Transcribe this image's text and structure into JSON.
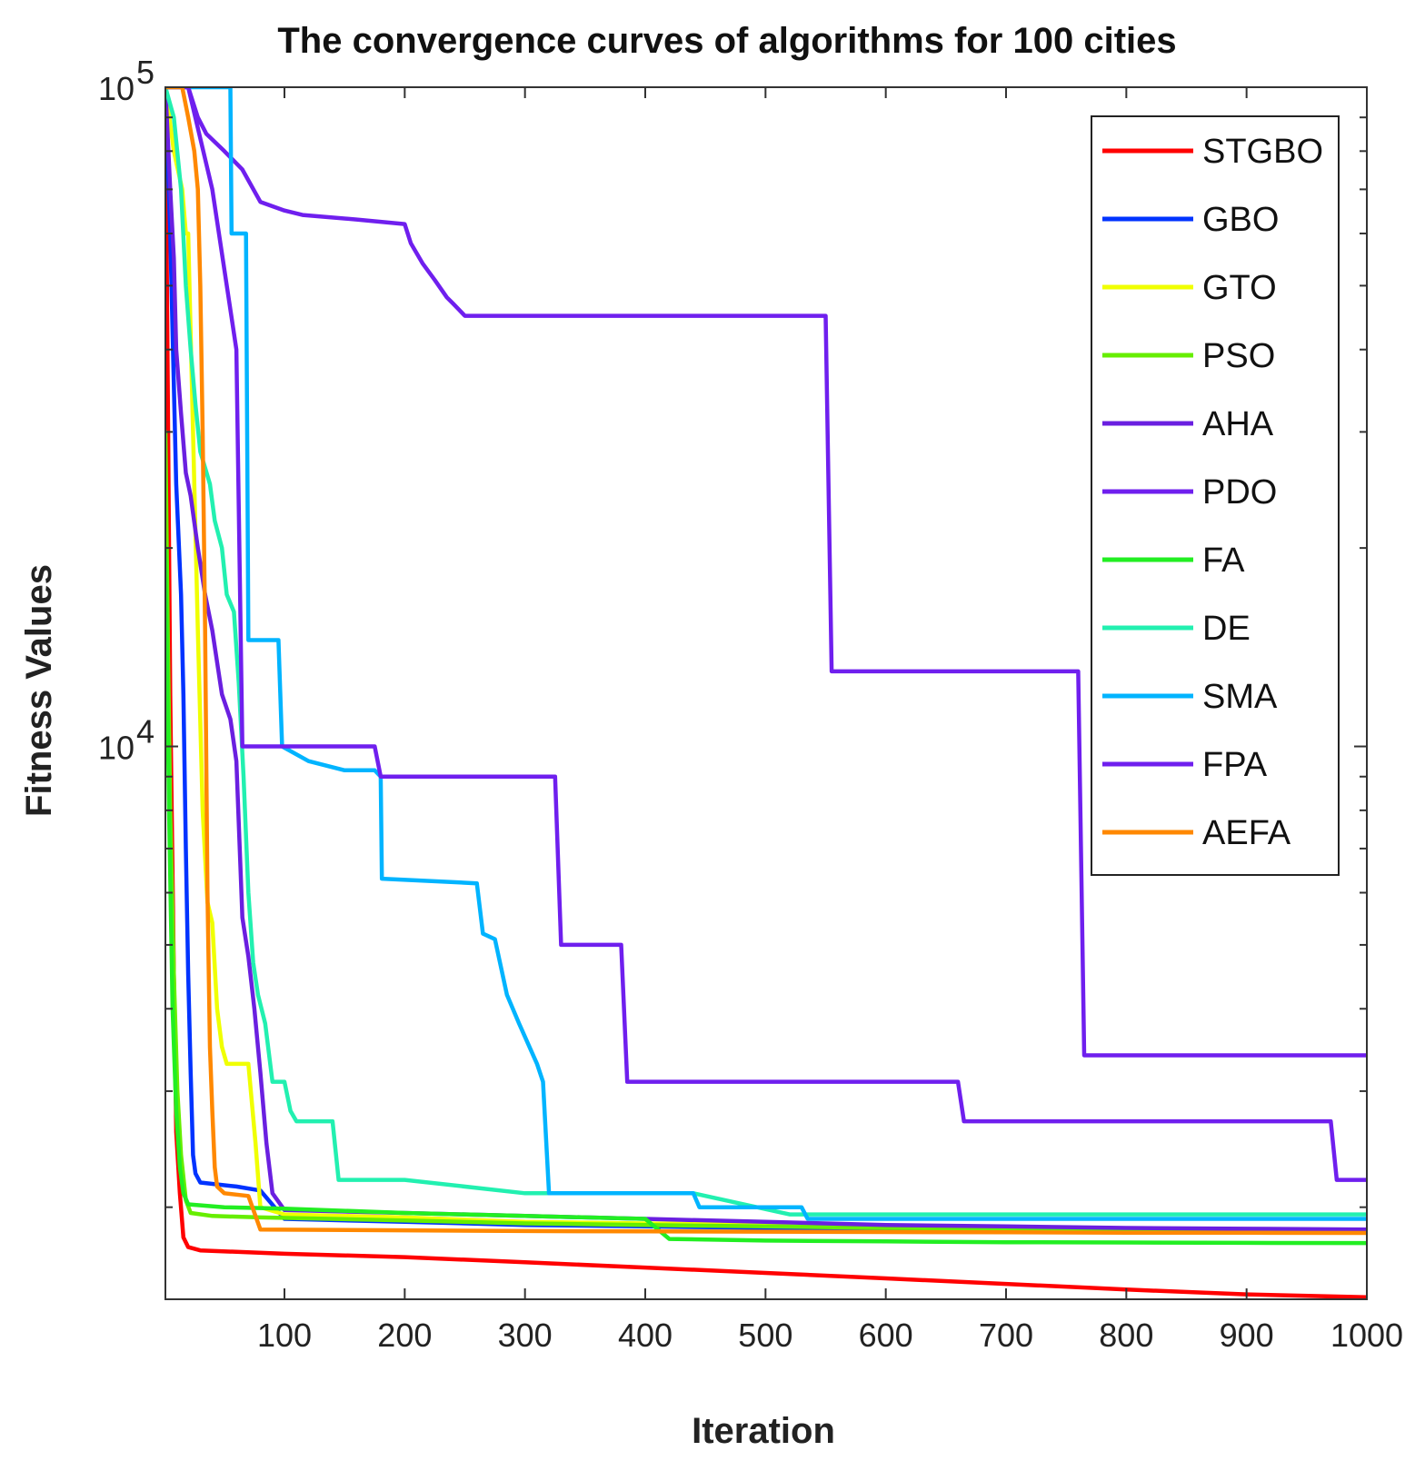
{
  "chart_data": {
    "type": "line",
    "title": "The convergence curves of algorithms for 100 cities",
    "xlabel": "Iteration",
    "ylabel": "Fitness Values",
    "xscale": "linear",
    "yscale": "log",
    "xlim": [
      1,
      1000
    ],
    "ylim": [
      1450,
      100000
    ],
    "xticks": [
      100,
      200,
      300,
      400,
      500,
      600,
      700,
      800,
      900,
      1000
    ],
    "xtick_labels": [
      "100",
      "200",
      "300",
      "400",
      "500",
      "600",
      "700",
      "800",
      "900",
      "1000"
    ],
    "yticks": [
      10000,
      100000
    ],
    "ytick_labels": [
      {
        "base": "10",
        "exp": "4"
      },
      {
        "base": "10",
        "exp": "5"
      }
    ],
    "legend_position": "top-right",
    "series": [
      {
        "name": "STGBO",
        "color": "#ff0000",
        "points": [
          [
            1,
            100000
          ],
          [
            5,
            12000
          ],
          [
            8,
            4500
          ],
          [
            10,
            2600
          ],
          [
            13,
            2100
          ],
          [
            16,
            1800
          ],
          [
            20,
            1740
          ],
          [
            30,
            1720
          ],
          [
            100,
            1700
          ],
          [
            200,
            1680
          ],
          [
            300,
            1650
          ],
          [
            400,
            1620
          ],
          [
            500,
            1590
          ],
          [
            600,
            1560
          ],
          [
            700,
            1530
          ],
          [
            800,
            1500
          ],
          [
            900,
            1475
          ],
          [
            1000,
            1460
          ]
        ]
      },
      {
        "name": "GBO",
        "color": "#0033ff",
        "points": [
          [
            1,
            100000
          ],
          [
            5,
            60000
          ],
          [
            10,
            25000
          ],
          [
            14,
            17000
          ],
          [
            16,
            12000
          ],
          [
            18,
            7000
          ],
          [
            20,
            4500
          ],
          [
            22,
            3200
          ],
          [
            24,
            2400
          ],
          [
            26,
            2250
          ],
          [
            30,
            2180
          ],
          [
            60,
            2150
          ],
          [
            80,
            2120
          ],
          [
            100,
            1920
          ],
          [
            200,
            1900
          ],
          [
            300,
            1880
          ],
          [
            400,
            1870
          ],
          [
            500,
            1860
          ],
          [
            600,
            1850
          ],
          [
            700,
            1845
          ],
          [
            800,
            1840
          ],
          [
            900,
            1835
          ],
          [
            1000,
            1830
          ]
        ]
      },
      {
        "name": "GTO",
        "color": "#f0ff00",
        "points": [
          [
            1,
            100000
          ],
          [
            8,
            80000
          ],
          [
            15,
            70000
          ],
          [
            18,
            60000
          ],
          [
            20,
            60000
          ],
          [
            24,
            30000
          ],
          [
            28,
            15000
          ],
          [
            32,
            8000
          ],
          [
            36,
            5800
          ],
          [
            40,
            5400
          ],
          [
            44,
            4000
          ],
          [
            48,
            3500
          ],
          [
            52,
            3300
          ],
          [
            56,
            3300
          ],
          [
            62,
            3300
          ],
          [
            70,
            3300
          ],
          [
            76,
            2500
          ],
          [
            80,
            2000
          ],
          [
            100,
            1950
          ],
          [
            200,
            1930
          ],
          [
            300,
            1900
          ],
          [
            400,
            1890
          ],
          [
            500,
            1880
          ],
          [
            600,
            1870
          ],
          [
            700,
            1860
          ],
          [
            800,
            1855
          ],
          [
            900,
            1850
          ],
          [
            1000,
            1845
          ]
        ]
      },
      {
        "name": "PSO",
        "color": "#66ee00",
        "points": [
          [
            1,
            30000
          ],
          [
            3,
            15000
          ],
          [
            5,
            8000
          ],
          [
            8,
            4500
          ],
          [
            11,
            3000
          ],
          [
            14,
            2400
          ],
          [
            18,
            2050
          ],
          [
            22,
            1960
          ],
          [
            40,
            1940
          ],
          [
            80,
            1930
          ],
          [
            200,
            1910
          ],
          [
            300,
            1890
          ],
          [
            400,
            1880
          ],
          [
            500,
            1870
          ],
          [
            600,
            1860
          ],
          [
            700,
            1855
          ],
          [
            800,
            1850
          ],
          [
            900,
            1845
          ],
          [
            1000,
            1840
          ]
        ]
      },
      {
        "name": "AHA",
        "color": "#6a1fe0",
        "points": [
          [
            1,
            100000
          ],
          [
            5,
            70000
          ],
          [
            8,
            55000
          ],
          [
            10,
            40000
          ],
          [
            14,
            32000
          ],
          [
            18,
            26000
          ],
          [
            22,
            24000
          ],
          [
            28,
            20000
          ],
          [
            34,
            17000
          ],
          [
            40,
            15000
          ],
          [
            48,
            12000
          ],
          [
            55,
            11000
          ],
          [
            60,
            9500
          ],
          [
            65,
            5500
          ],
          [
            70,
            4800
          ],
          [
            75,
            4000
          ],
          [
            80,
            3200
          ],
          [
            85,
            2500
          ],
          [
            90,
            2100
          ],
          [
            100,
            1980
          ],
          [
            200,
            1960
          ],
          [
            300,
            1940
          ],
          [
            400,
            1920
          ],
          [
            500,
            1900
          ],
          [
            600,
            1880
          ],
          [
            700,
            1870
          ],
          [
            800,
            1860
          ],
          [
            900,
            1855
          ],
          [
            1000,
            1850
          ]
        ]
      },
      {
        "name": "PDO",
        "color": "#6f1fee",
        "points": [
          [
            1,
            100000
          ],
          [
            20,
            100000
          ],
          [
            28,
            90000
          ],
          [
            35,
            85000
          ],
          [
            50,
            80000
          ],
          [
            65,
            75000
          ],
          [
            80,
            67000
          ],
          [
            100,
            65000
          ],
          [
            115,
            64000
          ],
          [
            160,
            63000
          ],
          [
            200,
            62000
          ],
          [
            205,
            58000
          ],
          [
            215,
            54000
          ],
          [
            225,
            51000
          ],
          [
            235,
            48000
          ],
          [
            240,
            47000
          ],
          [
            245,
            46000
          ],
          [
            250,
            45000
          ],
          [
            550,
            45000
          ],
          [
            555,
            13000
          ],
          [
            760,
            13000
          ],
          [
            765,
            3400
          ],
          [
            1000,
            3400
          ]
        ]
      },
      {
        "name": "FA",
        "color": "#22ee22",
        "points": [
          [
            1,
            20000
          ],
          [
            4,
            8000
          ],
          [
            7,
            4000
          ],
          [
            10,
            2800
          ],
          [
            13,
            2300
          ],
          [
            16,
            2100
          ],
          [
            20,
            2020
          ],
          [
            50,
            2000
          ],
          [
            100,
            1990
          ],
          [
            200,
            1960
          ],
          [
            300,
            1940
          ],
          [
            400,
            1920
          ],
          [
            420,
            1790
          ],
          [
            500,
            1780
          ],
          [
            600,
            1775
          ],
          [
            700,
            1770
          ],
          [
            800,
            1768
          ],
          [
            900,
            1766
          ],
          [
            1000,
            1765
          ]
        ]
      },
      {
        "name": "DE",
        "color": "#22f0b0",
        "points": [
          [
            1,
            100000
          ],
          [
            8,
            90000
          ],
          [
            14,
            70000
          ],
          [
            18,
            50000
          ],
          [
            22,
            40000
          ],
          [
            26,
            33000
          ],
          [
            30,
            28000
          ],
          [
            38,
            25000
          ],
          [
            42,
            22000
          ],
          [
            48,
            20000
          ],
          [
            52,
            17000
          ],
          [
            58,
            16000
          ],
          [
            62,
            12500
          ],
          [
            66,
            9000
          ],
          [
            70,
            6000
          ],
          [
            74,
            4700
          ],
          [
            78,
            4200
          ],
          [
            84,
            3800
          ],
          [
            90,
            3100
          ],
          [
            100,
            3100
          ],
          [
            105,
            2800
          ],
          [
            110,
            2700
          ],
          [
            140,
            2700
          ],
          [
            145,
            2200
          ],
          [
            200,
            2200
          ],
          [
            300,
            2100
          ],
          [
            440,
            2100
          ],
          [
            520,
            1950
          ],
          [
            700,
            1950
          ],
          [
            1000,
            1950
          ]
        ]
      },
      {
        "name": "SMA",
        "color": "#00b4ff",
        "points": [
          [
            1,
            100000
          ],
          [
            55,
            100000
          ],
          [
            56,
            60000
          ],
          [
            68,
            60000
          ],
          [
            70,
            14500
          ],
          [
            95,
            14500
          ],
          [
            98,
            10000
          ],
          [
            120,
            9500
          ],
          [
            150,
            9200
          ],
          [
            175,
            9200
          ],
          [
            180,
            9000
          ],
          [
            181,
            6300
          ],
          [
            260,
            6200
          ],
          [
            265,
            5200
          ],
          [
            275,
            5100
          ],
          [
            285,
            4200
          ],
          [
            295,
            3800
          ],
          [
            310,
            3300
          ],
          [
            315,
            3100
          ],
          [
            320,
            2100
          ],
          [
            440,
            2100
          ],
          [
            445,
            2000
          ],
          [
            530,
            2000
          ],
          [
            535,
            1920
          ],
          [
            1000,
            1920
          ]
        ]
      },
      {
        "name": "FPA",
        "color": "#6f1fee",
        "points": [
          [
            1,
            100000
          ],
          [
            20,
            100000
          ],
          [
            40,
            70000
          ],
          [
            60,
            40000
          ],
          [
            65,
            10000
          ],
          [
            175,
            10000
          ],
          [
            180,
            9000
          ],
          [
            325,
            9000
          ],
          [
            330,
            5000
          ],
          [
            380,
            5000
          ],
          [
            385,
            3100
          ],
          [
            660,
            3100
          ],
          [
            665,
            2700
          ],
          [
            970,
            2700
          ],
          [
            975,
            2200
          ],
          [
            1000,
            2200
          ]
        ]
      },
      {
        "name": "AEFA",
        "color": "#ff8800",
        "points": [
          [
            1,
            100000
          ],
          [
            15,
            100000
          ],
          [
            20,
            90000
          ],
          [
            25,
            80000
          ],
          [
            28,
            70000
          ],
          [
            30,
            50000
          ],
          [
            32,
            30000
          ],
          [
            34,
            15000
          ],
          [
            36,
            6000
          ],
          [
            38,
            3500
          ],
          [
            40,
            2800
          ],
          [
            42,
            2300
          ],
          [
            44,
            2150
          ],
          [
            50,
            2100
          ],
          [
            60,
            2090
          ],
          [
            70,
            2080
          ],
          [
            80,
            1850
          ],
          [
            200,
            1845
          ],
          [
            300,
            1840
          ],
          [
            400,
            1838
          ],
          [
            500,
            1836
          ],
          [
            600,
            1834
          ],
          [
            700,
            1832
          ],
          [
            800,
            1830
          ],
          [
            900,
            1829
          ],
          [
            1000,
            1828
          ]
        ]
      }
    ]
  }
}
